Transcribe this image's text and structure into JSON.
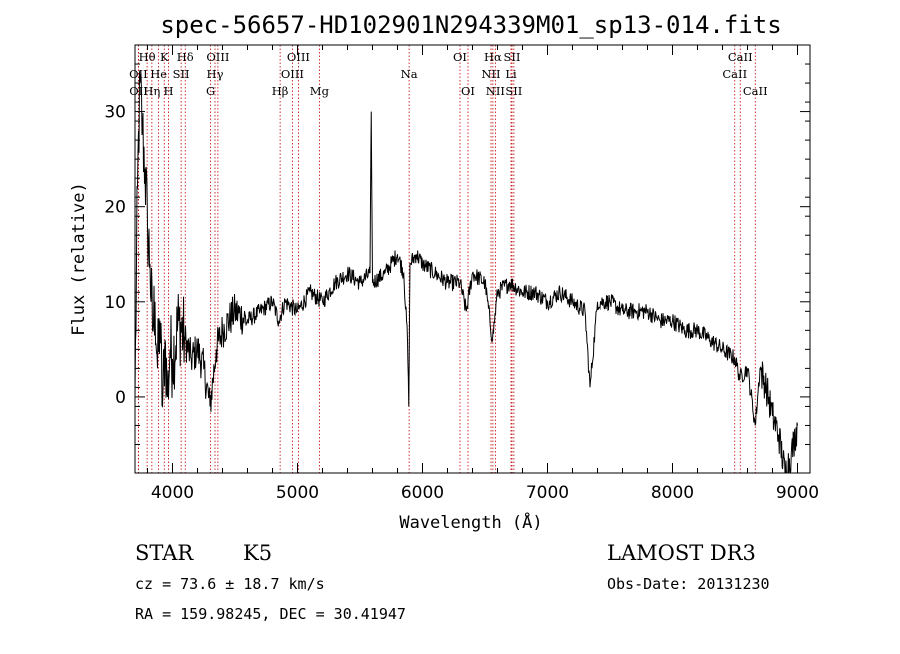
{
  "chart_data": {
    "type": "line",
    "title": "spec-56657-HD102901N294339M01_sp13-014.fits",
    "xlabel": "Wavelength (Å)",
    "ylabel": "Flux (relative)",
    "xlim": [
      3700,
      9100
    ],
    "ylim": [
      -8,
      37
    ],
    "x_ticks": [
      4000,
      5000,
      6000,
      7000,
      8000,
      9000
    ],
    "y_ticks": [
      0,
      10,
      20,
      30
    ],
    "grid": false,
    "spectrum": {
      "x": [
        3700,
        3720,
        3740,
        3760,
        3780,
        3800,
        3820,
        3840,
        3860,
        3880,
        3900,
        3920,
        3940,
        3960,
        3980,
        4000,
        4050,
        4100,
        4150,
        4200,
        4250,
        4300,
        4350,
        4400,
        4500,
        4600,
        4700,
        4800,
        4850,
        4900,
        5000,
        5100,
        5200,
        5300,
        5400,
        5500,
        5580,
        5590,
        5600,
        5700,
        5800,
        5850,
        5880,
        5890,
        5900,
        5950,
        6000,
        6100,
        6200,
        6300,
        6350,
        6400,
        6500,
        6560,
        6600,
        6700,
        6800,
        6900,
        7000,
        7100,
        7200,
        7300,
        7340,
        7400,
        7500,
        7600,
        7700,
        7800,
        7900,
        8000,
        8100,
        8200,
        8300,
        8400,
        8500,
        8540,
        8600,
        8662,
        8700,
        8750,
        8800,
        8850,
        8900,
        8950,
        9000
      ],
      "y": [
        0,
        22,
        33,
        28,
        24,
        18,
        14,
        7,
        10,
        3,
        8,
        -1,
        6,
        0,
        5,
        4,
        8,
        6,
        4,
        5,
        3,
        -1,
        5,
        7,
        9,
        8,
        9,
        10,
        8,
        10,
        9,
        11,
        10,
        12,
        13,
        12,
        13,
        30,
        12,
        13,
        15,
        13,
        6,
        -1,
        14,
        15,
        14,
        13,
        12,
        12,
        9,
        13,
        12,
        6,
        11,
        12,
        11,
        11,
        10,
        11,
        10,
        9,
        1,
        10,
        10,
        9,
        9,
        9,
        8,
        8,
        7,
        7,
        6,
        5,
        4,
        2,
        3,
        -3,
        3,
        1,
        -2,
        -4,
        -8,
        -6,
        -3
      ]
    },
    "lines": [
      {
        "label": "Hθ",
        "x": 3797,
        "row": 1
      },
      {
        "label": "OII",
        "x": 3727,
        "row": 2
      },
      {
        "label": "OII",
        "x": 3728,
        "row": 3
      },
      {
        "label": "He",
        "x": 3889,
        "row": 2
      },
      {
        "label": "K",
        "x": 3934,
        "row": 1
      },
      {
        "label": "Hη",
        "x": 3835,
        "row": 3
      },
      {
        "label": "H",
        "x": 3968,
        "row": 3
      },
      {
        "label": "SII",
        "x": 4069,
        "row": 2
      },
      {
        "label": "Hδ",
        "x": 4102,
        "row": 1
      },
      {
        "label": "OIII",
        "x": 4363,
        "row": 1
      },
      {
        "label": "Hγ",
        "x": 4340,
        "row": 2
      },
      {
        "label": "G",
        "x": 4305,
        "row": 3
      },
      {
        "label": "OIII",
        "x": 5007,
        "row": 1
      },
      {
        "label": "OIII",
        "x": 4959,
        "row": 2
      },
      {
        "label": "Hβ",
        "x": 4861,
        "row": 3
      },
      {
        "label": "Mg",
        "x": 5175,
        "row": 3
      },
      {
        "label": "Na",
        "x": 5893,
        "row": 2
      },
      {
        "label": "OI",
        "x": 6300,
        "row": 1
      },
      {
        "label": "OI",
        "x": 6364,
        "row": 3
      },
      {
        "label": "Hα",
        "x": 6563,
        "row": 1
      },
      {
        "label": "SII",
        "x": 6716,
        "row": 1
      },
      {
        "label": "NII",
        "x": 6548,
        "row": 2
      },
      {
        "label": "Li",
        "x": 6708,
        "row": 2
      },
      {
        "label": "NII",
        "x": 6583,
        "row": 3
      },
      {
        "label": "SII",
        "x": 6731,
        "row": 3
      },
      {
        "label": "CaII",
        "x": 8542,
        "row": 1
      },
      {
        "label": "CaII",
        "x": 8498,
        "row": 2
      },
      {
        "label": "CaII",
        "x": 8662,
        "row": 3
      }
    ]
  },
  "info": {
    "class_label": "STAR",
    "subclass": "K5",
    "survey": "LAMOST DR3",
    "cz": "cz = 73.6 ± 18.7 km/s",
    "obs_date": "Obs-Date: 20131230",
    "radec": "RA = 159.98245, DEC =  30.41947"
  },
  "colors": {
    "spectrum": "#000000",
    "line_marker": "#c00000",
    "axes": "#000000"
  }
}
